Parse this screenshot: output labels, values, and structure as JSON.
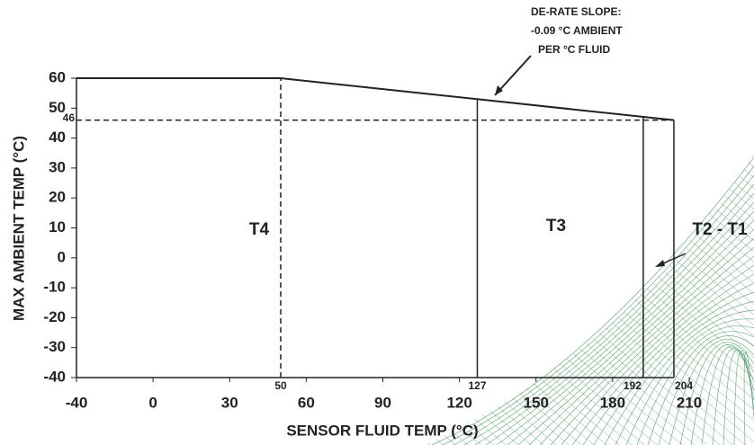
{
  "chart_data": {
    "type": "line",
    "x_label": "SENSOR FLUID TEMP (°C)",
    "y_label": "MAX AMBIENT TEMP (°C)",
    "xlim": [
      -40,
      210
    ],
    "xticks": [
      -40,
      0,
      30,
      60,
      90,
      120,
      150,
      180,
      210
    ],
    "ylim": [
      -40,
      60
    ],
    "yticks": [
      -40,
      -30,
      -20,
      -10,
      0,
      10,
      20,
      30,
      40,
      50,
      60
    ],
    "series": [
      {
        "color": "#222222",
        "x": [
          -40,
          50,
          204
        ],
        "values": [
          60,
          60,
          46
        ]
      }
    ],
    "x_markers": [
      50,
      127,
      192,
      204
    ],
    "y_marker": 46,
    "zone_labels": [
      "T4",
      "T3",
      "T2 - T1"
    ],
    "annotation": [
      "DE-RATE SLOPE:",
      "-0.09 °C AMBIENT",
      "PER °C FLUID"
    ]
  }
}
